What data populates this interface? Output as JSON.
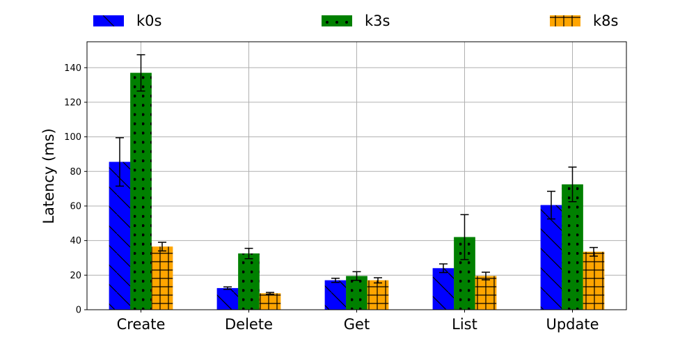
{
  "chart_data": {
    "type": "bar",
    "title": "",
    "xlabel": "",
    "ylabel": "Latency (ms)",
    "ylim": [
      0,
      155
    ],
    "yticks": [
      0,
      20,
      40,
      60,
      80,
      100,
      120,
      140
    ],
    "grid": true,
    "legend_position": "top",
    "categories": [
      "Create",
      "Delete",
      "Get",
      "List",
      "Update"
    ],
    "series": [
      {
        "name": "k0s",
        "color": "#0000ff",
        "hatch": "diagonal",
        "values": [
          85.5,
          12.5,
          17,
          24,
          60.5
        ],
        "errors": [
          14,
          0.7,
          1.2,
          2.5,
          8
        ]
      },
      {
        "name": "k3s",
        "color": "#008000",
        "hatch": "dots",
        "values": [
          137,
          32.5,
          19.5,
          42,
          72.5
        ],
        "errors": [
          10.5,
          3,
          2.5,
          13,
          10
        ]
      },
      {
        "name": "k8s",
        "color": "#ffa500",
        "hatch": "grid",
        "values": [
          36.5,
          9.5,
          17,
          19.5,
          33.5
        ],
        "errors": [
          2.5,
          0.5,
          1.5,
          2.2,
          2.5
        ]
      }
    ]
  }
}
